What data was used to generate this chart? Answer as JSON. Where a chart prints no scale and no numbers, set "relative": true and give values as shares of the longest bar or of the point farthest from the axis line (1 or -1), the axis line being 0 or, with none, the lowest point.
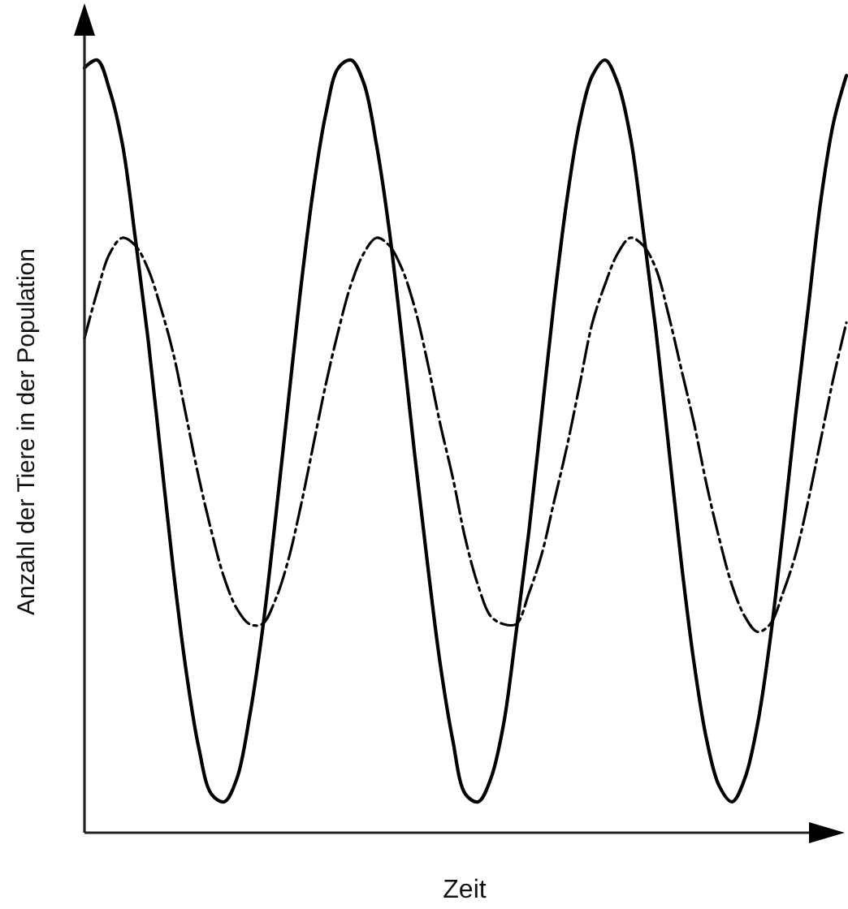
{
  "chart_data": {
    "type": "line",
    "relative": true,
    "xlabel": "Zeit",
    "ylabel": "Anzahl der Tiere in der Population",
    "categories": [
      null,
      null,
      null,
      null,
      null,
      null,
      null,
      null,
      null,
      null,
      null,
      null,
      null,
      null,
      null,
      null,
      null,
      null,
      null,
      null,
      null,
      null,
      null,
      null,
      null,
      null,
      null,
      null,
      null,
      null,
      null,
      null,
      null,
      null,
      null,
      null,
      null,
      null,
      null,
      null,
      null,
      null,
      null,
      null,
      null,
      null,
      null,
      null,
      null,
      null,
      null,
      null,
      null,
      null,
      null,
      null,
      null,
      null,
      null,
      null,
      null
    ],
    "series": [
      {
        "color": "#000000",
        "line_style": "solid",
        "values": [
          0.99,
          1.0,
          0.96,
          0.89,
          0.77,
          0.64,
          0.49,
          0.34,
          0.21,
          0.11,
          0.05,
          0.04,
          0.07,
          0.15,
          0.26,
          0.4,
          0.55,
          0.7,
          0.83,
          0.93,
          0.99,
          1.0,
          0.97,
          0.89,
          0.78,
          0.64,
          0.49,
          0.35,
          0.22,
          0.12,
          0.05,
          0.04,
          0.07,
          0.14,
          0.26,
          0.39,
          0.54,
          0.69,
          0.82,
          0.92,
          0.98,
          1.0,
          0.97,
          0.9,
          0.78,
          0.65,
          0.5,
          0.35,
          0.22,
          0.12,
          0.06,
          0.04,
          0.07,
          0.14,
          0.25,
          0.39,
          0.54,
          0.68,
          0.82,
          0.92,
          0.98
        ]
      },
      {
        "color": "#000000",
        "line_style": "dashed",
        "values": [
          0.64,
          0.7,
          0.75,
          0.77,
          0.76,
          0.73,
          0.68,
          0.62,
          0.54,
          0.46,
          0.39,
          0.33,
          0.29,
          0.27,
          0.27,
          0.3,
          0.35,
          0.42,
          0.5,
          0.58,
          0.65,
          0.71,
          0.75,
          0.77,
          0.76,
          0.73,
          0.68,
          0.61,
          0.53,
          0.46,
          0.38,
          0.32,
          0.28,
          0.27,
          0.27,
          0.31,
          0.36,
          0.43,
          0.5,
          0.58,
          0.66,
          0.71,
          0.75,
          0.77,
          0.76,
          0.73,
          0.67,
          0.6,
          0.53,
          0.45,
          0.38,
          0.32,
          0.28,
          0.26,
          0.27,
          0.31,
          0.36,
          0.43,
          0.51,
          0.59,
          0.66
        ]
      }
    ]
  }
}
